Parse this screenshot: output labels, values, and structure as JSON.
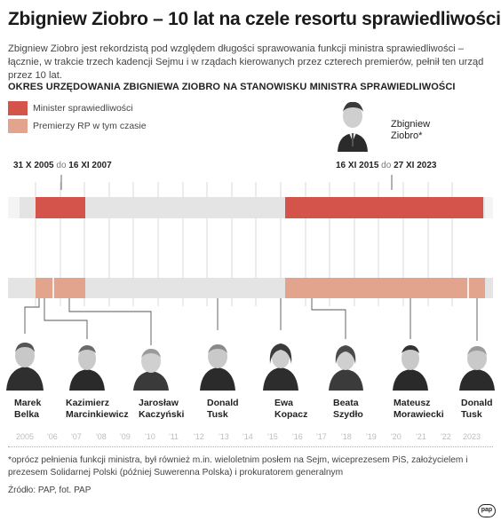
{
  "title": "Zbigniew Ziobro – 10 lat na czele resortu sprawiedliwości",
  "subtitle": "Zbigniew Ziobro jest rekordzistą pod względem długości sprawowania funkcji ministra sprawiedliwości – łącznie, w trakcie trzech kadencji Sejmu i w rządach kierowanych przez czterech premierów, pełnił ten urząd przez 10 lat.",
  "section_heading": "OKRES URZĘDOWANIA ZBIGNIEWA ZIOBRO NA STANOWISKU MINISTRA SPRAWIEDLIWOŚCI",
  "legend": [
    {
      "label": "Minister sprawiedliwości",
      "color": "#d4544b"
    },
    {
      "label": "Premierzy RP w tym czasie",
      "color": "#e3a48d"
    }
  ],
  "ziobro": {
    "name_line1": "Zbigniew",
    "name_line2": "Ziobro*"
  },
  "periods": [
    {
      "start": "31 X 2005",
      "sep": "do",
      "end": "16 XI 2007"
    },
    {
      "start": "16 XI 2015",
      "sep": "do",
      "end": "27 XI 2023"
    }
  ],
  "prime_ministers": [
    {
      "first": "Marek",
      "last": "Belka"
    },
    {
      "first": "Kazimierz",
      "last": "Marcinkiewicz"
    },
    {
      "first": "Jarosław",
      "last": "Kaczyński"
    },
    {
      "first": "Donald",
      "last": "Tusk"
    },
    {
      "first": "Ewa",
      "last": "Kopacz"
    },
    {
      "first": "Beata",
      "last": "Szydło"
    },
    {
      "first": "Mateusz",
      "last": "Morawiecki"
    },
    {
      "first": "Donald",
      "last": "Tusk"
    }
  ],
  "years": [
    "2005",
    "'06",
    "'07",
    "'08",
    "'09",
    "'10",
    "'11",
    "'12",
    "'13",
    "'14",
    "'15",
    "'16",
    "'17",
    "'18",
    "'19",
    "'20",
    "'21",
    "'22",
    "2023"
  ],
  "colors": {
    "minister": "#d4544b",
    "premier": "#e3a48d",
    "track": "#e4e4e4",
    "gridline": "#cfcfcf"
  },
  "footnote": "*oprócz pełnienia funkcji ministra, był również m.in. wieloletnim posłem na Sejm, wiceprezesem PiS, założycielem i prezesem Solidarnej Polski (później Suwerenna Polska) i prokuratorem generalnym",
  "source": "Źródło: PAP, fot. PAP",
  "logo": "pap"
}
